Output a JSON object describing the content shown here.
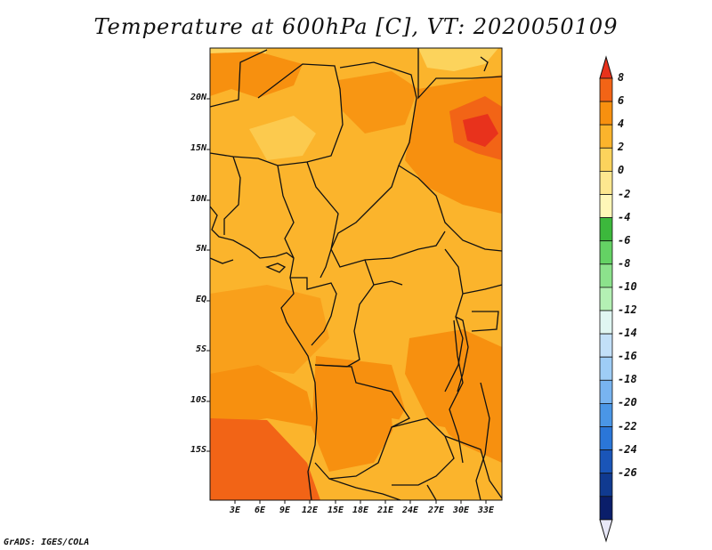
{
  "title": "Temperature at 600hPa [C], VT: 2020050109",
  "footer": "GrADS: IGES/COLA",
  "map": {
    "lat_labels": [
      "20N",
      "15N",
      "10N",
      "5N",
      "EQ",
      "5S",
      "10S",
      "15S"
    ],
    "lon_labels": [
      "3E",
      "6E",
      "9E",
      "12E",
      "15E",
      "18E",
      "21E",
      "24E",
      "27E",
      "30E",
      "33E"
    ]
  },
  "colorbar": {
    "labels": [
      "8",
      "6",
      "4",
      "2",
      "0",
      "-2",
      "-4",
      "-6",
      "-8",
      "-10",
      "-12",
      "-14",
      "-16",
      "-18",
      "-20",
      "-22",
      "-24",
      "-26"
    ],
    "colors": [
      "#e8321c",
      "#f26416",
      "#f7900f",
      "#fbb42c",
      "#fcd35c",
      "#fde78f",
      "#fff7b8",
      "#3cb83c",
      "#64d264",
      "#8ce28c",
      "#b4f0b4",
      "#e0f6f2",
      "#c2e0f8",
      "#9ecdf6",
      "#78b4f0",
      "#4a96e6",
      "#2a76d8",
      "#1a55b8",
      "#103a90",
      "#0a1e6a",
      "#e8e8f8"
    ]
  }
}
